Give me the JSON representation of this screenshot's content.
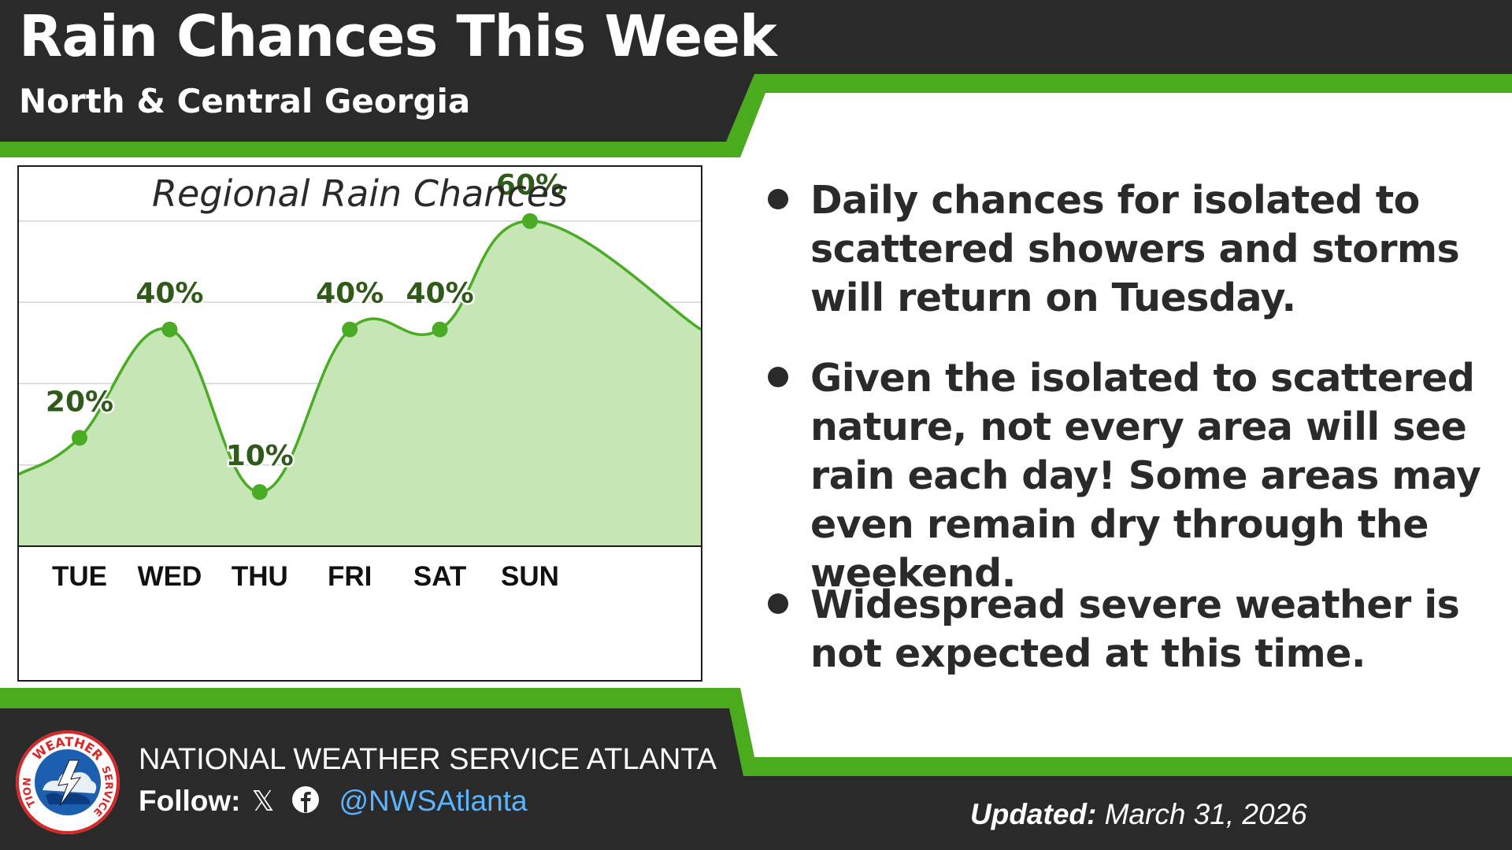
{
  "header": {
    "title": "Rain Chances This Week",
    "subtitle": "North & Central Georgia"
  },
  "chart_data": {
    "type": "area",
    "title": "Regional Rain Chances",
    "categories": [
      "TUE",
      "WED",
      "THU",
      "FRI",
      "SAT",
      "SUN"
    ],
    "values": [
      20,
      40,
      10,
      40,
      40,
      60
    ],
    "data_labels": [
      "20%",
      "40%",
      "10%",
      "40%",
      "40%",
      "60%"
    ],
    "ylim": [
      0,
      70
    ],
    "grid": true,
    "line_color": "#4aac24",
    "fill_color": "#c6e6b6"
  },
  "bullets": [
    "Daily chances for isolated to scattered showers and storms will return on Tuesday.",
    "Given the isolated to scattered nature, not every area will see rain each day! Some areas may even remain dry through the weekend.",
    "Widespread severe weather is not expected at this time."
  ],
  "footer": {
    "logo_name": "nws-logo",
    "logo_text_top": "WEATHER",
    "logo_text_left": "NATIONAL",
    "logo_text_right": "SERVICE",
    "org_name": "NATIONAL WEATHER SERVICE ATLANTA",
    "follow_label": "Follow:",
    "x_icon": "𝕏",
    "handle": "@NWSAtlanta",
    "updated_label": "Updated:",
    "updated_date": "March 31, 2026"
  },
  "colors": {
    "accent_green": "#4aac1c",
    "dark": "#2a2a2a",
    "white": "#ffffff",
    "link_blue": "#5ab4ff"
  }
}
